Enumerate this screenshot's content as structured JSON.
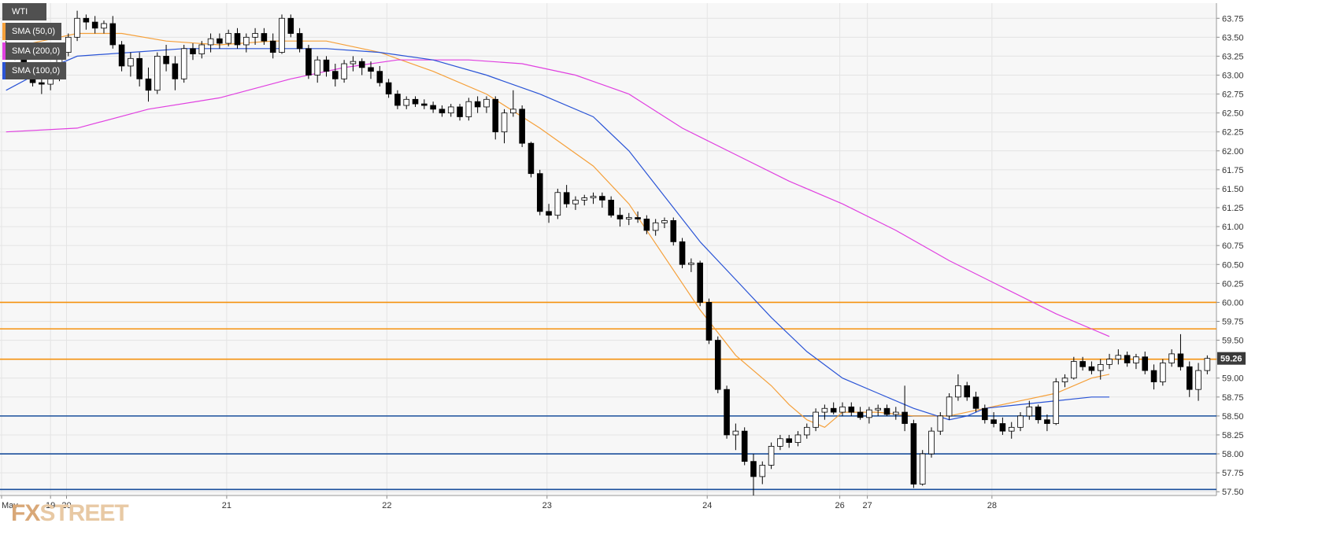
{
  "chart_data": {
    "type": "candlestick",
    "title": "WTI",
    "symbol": "WTI",
    "ylim": [
      57.45,
      63.95
    ],
    "yticks": [
      "63.75",
      "63.50",
      "63.25",
      "63.00",
      "62.75",
      "62.50",
      "62.25",
      "62.00",
      "61.75",
      "61.50",
      "61.25",
      "61.00",
      "60.75",
      "60.50",
      "60.25",
      "60.00",
      "59.75",
      "59.50",
      "59.25",
      "59.00",
      "58.75",
      "58.50",
      "58.25",
      "58.00",
      "57.75",
      "57.50"
    ],
    "xtick_labels": [
      {
        "label": "May",
        "at": 0
      },
      {
        "label": "19",
        "at": 5.5
      },
      {
        "label": "20",
        "at": 7.3
      },
      {
        "label": "21",
        "at": 25.3
      },
      {
        "label": "22",
        "at": 43.3
      },
      {
        "label": "23",
        "at": 61.3
      },
      {
        "label": "24",
        "at": 79.3
      },
      {
        "label": "26",
        "at": 94.2
      },
      {
        "label": "27",
        "at": 97.3
      },
      {
        "label": "28",
        "at": 111.3
      }
    ],
    "current_price": "59.26",
    "hlines": [
      {
        "value": 60.0,
        "color": "#f5920f"
      },
      {
        "value": 59.65,
        "color": "#f5920f"
      },
      {
        "value": 59.25,
        "color": "#f5920f"
      },
      {
        "value": 58.5,
        "color": "#1a4f9c"
      },
      {
        "value": 58.0,
        "color": "#1a4f9c"
      },
      {
        "value": 57.53,
        "color": "#1a4f9c"
      }
    ],
    "series": [
      {
        "name": "SMA (50,0)",
        "color": "#f5a03a",
        "points": [
          [
            0,
            63.35
          ],
          [
            4,
            63.45
          ],
          [
            8,
            63.55
          ],
          [
            13,
            63.55
          ],
          [
            18,
            63.45
          ],
          [
            24,
            63.4
          ],
          [
            30,
            63.45
          ],
          [
            36,
            63.45
          ],
          [
            42,
            63.3
          ],
          [
            48,
            63.05
          ],
          [
            54,
            62.75
          ],
          [
            60,
            62.3
          ],
          [
            66,
            61.8
          ],
          [
            70,
            61.3
          ],
          [
            74,
            60.6
          ],
          [
            78,
            59.9
          ],
          [
            82,
            59.3
          ],
          [
            86,
            58.9
          ],
          [
            88,
            58.65
          ],
          [
            90,
            58.45
          ],
          [
            92,
            58.35
          ],
          [
            94,
            58.55
          ],
          [
            98,
            58.55
          ],
          [
            102,
            58.5
          ],
          [
            106,
            58.5
          ],
          [
            110,
            58.6
          ],
          [
            114,
            58.7
          ],
          [
            118,
            58.8
          ],
          [
            122,
            59.0
          ],
          [
            124,
            59.05
          ]
        ]
      },
      {
        "name": "SMA (200,0)",
        "color": "#e040e0",
        "points": [
          [
            0,
            62.25
          ],
          [
            8,
            62.3
          ],
          [
            16,
            62.55
          ],
          [
            24,
            62.7
          ],
          [
            32,
            62.95
          ],
          [
            38,
            63.1
          ],
          [
            44,
            63.2
          ],
          [
            52,
            63.2
          ],
          [
            58,
            63.15
          ],
          [
            64,
            63.0
          ],
          [
            70,
            62.75
          ],
          [
            76,
            62.3
          ],
          [
            82,
            61.95
          ],
          [
            88,
            61.6
          ],
          [
            94,
            61.3
          ],
          [
            100,
            60.95
          ],
          [
            106,
            60.55
          ],
          [
            112,
            60.2
          ],
          [
            118,
            59.85
          ],
          [
            124,
            59.55
          ]
        ]
      },
      {
        "name": "SMA (100,0)",
        "color": "#2a54d6",
        "points": [
          [
            0,
            62.8
          ],
          [
            4,
            63.05
          ],
          [
            8,
            63.25
          ],
          [
            14,
            63.3
          ],
          [
            20,
            63.35
          ],
          [
            28,
            63.35
          ],
          [
            36,
            63.35
          ],
          [
            42,
            63.3
          ],
          [
            48,
            63.2
          ],
          [
            54,
            63.0
          ],
          [
            60,
            62.75
          ],
          [
            66,
            62.45
          ],
          [
            70,
            62.0
          ],
          [
            74,
            61.4
          ],
          [
            78,
            60.8
          ],
          [
            82,
            60.3
          ],
          [
            86,
            59.8
          ],
          [
            90,
            59.35
          ],
          [
            94,
            59.0
          ],
          [
            98,
            58.8
          ],
          [
            102,
            58.6
          ],
          [
            106,
            58.45
          ],
          [
            108,
            58.5
          ],
          [
            110,
            58.6
          ],
          [
            114,
            58.65
          ],
          [
            118,
            58.7
          ],
          [
            122,
            58.75
          ],
          [
            124,
            58.75
          ]
        ]
      }
    ],
    "candles": [
      [
        63.38,
        63.45,
        63.3,
        63.32
      ],
      [
        63.32,
        63.42,
        63.2,
        63.25
      ],
      [
        63.25,
        63.3,
        63.02,
        63.05
      ],
      [
        63.05,
        63.1,
        62.85,
        62.9
      ],
      [
        62.9,
        62.95,
        62.75,
        62.88
      ],
      [
        62.88,
        63.0,
        62.8,
        62.95
      ],
      [
        62.95,
        63.35,
        62.92,
        63.3
      ],
      [
        63.3,
        63.55,
        63.25,
        63.5
      ],
      [
        63.5,
        63.85,
        63.45,
        63.75
      ],
      [
        63.75,
        63.8,
        63.6,
        63.7
      ],
      [
        63.7,
        63.78,
        63.55,
        63.62
      ],
      [
        63.62,
        63.72,
        63.55,
        63.68
      ],
      [
        63.68,
        63.78,
        63.35,
        63.4
      ],
      [
        63.4,
        63.45,
        63.05,
        63.12
      ],
      [
        63.12,
        63.3,
        62.98,
        63.22
      ],
      [
        63.22,
        63.3,
        62.85,
        62.95
      ],
      [
        62.95,
        63.1,
        62.65,
        62.8
      ],
      [
        62.8,
        63.3,
        62.75,
        63.25
      ],
      [
        63.25,
        63.4,
        63.05,
        63.15
      ],
      [
        63.15,
        63.25,
        62.8,
        62.95
      ],
      [
        62.95,
        63.4,
        62.9,
        63.35
      ],
      [
        63.35,
        63.42,
        63.2,
        63.28
      ],
      [
        63.28,
        63.45,
        63.22,
        63.4
      ],
      [
        63.4,
        63.55,
        63.3,
        63.48
      ],
      [
        63.48,
        63.55,
        63.35,
        63.42
      ],
      [
        63.42,
        63.6,
        63.38,
        63.55
      ],
      [
        63.55,
        63.62,
        63.35,
        63.4
      ],
      [
        63.4,
        63.55,
        63.3,
        63.5
      ],
      [
        63.5,
        63.62,
        63.4,
        63.55
      ],
      [
        63.55,
        63.62,
        63.4,
        63.45
      ],
      [
        63.45,
        63.55,
        63.22,
        63.3
      ],
      [
        63.3,
        63.8,
        63.28,
        63.75
      ],
      [
        63.75,
        63.8,
        63.5,
        63.55
      ],
      [
        63.55,
        63.62,
        63.3,
        63.35
      ],
      [
        63.35,
        63.4,
        62.95,
        63.0
      ],
      [
        63.0,
        63.25,
        62.9,
        63.2
      ],
      [
        63.2,
        63.25,
        62.98,
        63.05
      ],
      [
        63.05,
        63.15,
        62.85,
        62.95
      ],
      [
        62.95,
        63.2,
        62.9,
        63.15
      ],
      [
        63.15,
        63.25,
        63.05,
        63.18
      ],
      [
        63.18,
        63.22,
        63.0,
        63.1
      ],
      [
        63.1,
        63.18,
        62.95,
        63.05
      ],
      [
        63.05,
        63.12,
        62.85,
        62.9
      ],
      [
        62.9,
        62.95,
        62.7,
        62.75
      ],
      [
        62.75,
        62.8,
        62.55,
        62.6
      ],
      [
        62.6,
        62.72,
        62.55,
        62.68
      ],
      [
        62.68,
        62.72,
        62.58,
        62.62
      ],
      [
        62.62,
        62.68,
        62.55,
        62.6
      ],
      [
        62.6,
        62.65,
        62.5,
        62.55
      ],
      [
        62.55,
        62.6,
        62.45,
        62.5
      ],
      [
        62.5,
        62.62,
        62.45,
        62.58
      ],
      [
        62.58,
        62.62,
        62.4,
        62.45
      ],
      [
        62.45,
        62.7,
        62.4,
        62.65
      ],
      [
        62.65,
        62.72,
        62.5,
        62.58
      ],
      [
        62.58,
        62.72,
        62.5,
        62.68
      ],
      [
        62.68,
        62.72,
        62.15,
        62.25
      ],
      [
        62.25,
        62.55,
        62.1,
        62.5
      ],
      [
        62.5,
        62.8,
        62.45,
        62.55
      ],
      [
        62.55,
        62.6,
        62.05,
        62.1
      ],
      [
        62.1,
        62.12,
        61.65,
        61.7
      ],
      [
        61.7,
        61.75,
        61.15,
        61.2
      ],
      [
        61.2,
        61.3,
        61.05,
        61.15
      ],
      [
        61.15,
        61.5,
        61.1,
        61.45
      ],
      [
        61.45,
        61.55,
        61.25,
        61.3
      ],
      [
        61.3,
        61.4,
        61.22,
        61.35
      ],
      [
        61.35,
        61.42,
        61.28,
        61.38
      ],
      [
        61.38,
        61.45,
        61.3,
        61.4
      ],
      [
        61.4,
        61.45,
        61.25,
        61.35
      ],
      [
        61.35,
        61.4,
        61.12,
        61.15
      ],
      [
        61.15,
        61.25,
        61.0,
        61.1
      ],
      [
        61.1,
        61.18,
        61.02,
        61.12
      ],
      [
        61.12,
        61.2,
        61.05,
        61.1
      ],
      [
        61.1,
        61.15,
        60.9,
        60.95
      ],
      [
        60.95,
        61.1,
        60.88,
        61.05
      ],
      [
        61.05,
        61.12,
        60.98,
        61.08
      ],
      [
        61.08,
        61.12,
        60.75,
        60.8
      ],
      [
        60.8,
        60.85,
        60.45,
        60.5
      ],
      [
        60.5,
        60.58,
        60.4,
        60.52
      ],
      [
        60.52,
        60.55,
        59.95,
        60.0
      ],
      [
        60.0,
        60.05,
        59.45,
        59.5
      ],
      [
        59.5,
        59.55,
        58.8,
        58.85
      ],
      [
        58.85,
        58.9,
        58.2,
        58.25
      ],
      [
        58.25,
        58.4,
        58.05,
        58.3
      ],
      [
        58.3,
        58.35,
        57.85,
        57.9
      ],
      [
        57.9,
        58.0,
        57.45,
        57.7
      ],
      [
        57.7,
        57.9,
        57.6,
        57.85
      ],
      [
        57.85,
        58.15,
        57.8,
        58.1
      ],
      [
        58.1,
        58.25,
        58.05,
        58.2
      ],
      [
        58.2,
        58.25,
        58.08,
        58.15
      ],
      [
        58.15,
        58.3,
        58.1,
        58.25
      ],
      [
        58.25,
        58.4,
        58.2,
        58.35
      ],
      [
        58.35,
        58.6,
        58.3,
        58.55
      ],
      [
        58.55,
        58.65,
        58.45,
        58.6
      ],
      [
        58.6,
        58.68,
        58.52,
        58.55
      ],
      [
        58.55,
        58.68,
        58.5,
        58.62
      ],
      [
        58.62,
        58.68,
        58.5,
        58.55
      ],
      [
        58.55,
        58.62,
        58.45,
        58.48
      ],
      [
        58.48,
        58.62,
        58.4,
        58.58
      ],
      [
        58.58,
        58.65,
        58.5,
        58.6
      ],
      [
        58.6,
        58.65,
        58.5,
        58.52
      ],
      [
        58.52,
        58.62,
        58.45,
        58.55
      ],
      [
        58.55,
        58.9,
        58.3,
        58.4
      ],
      [
        58.4,
        58.45,
        57.55,
        57.6
      ],
      [
        57.6,
        58.05,
        57.58,
        58.0
      ],
      [
        58.0,
        58.35,
        57.95,
        58.3
      ],
      [
        58.3,
        58.55,
        58.25,
        58.5
      ],
      [
        58.5,
        58.8,
        58.45,
        58.75
      ],
      [
        58.75,
        59.05,
        58.7,
        58.9
      ],
      [
        58.9,
        58.95,
        58.7,
        58.75
      ],
      [
        58.75,
        58.82,
        58.55,
        58.6
      ],
      [
        58.6,
        58.65,
        58.4,
        58.45
      ],
      [
        58.45,
        58.55,
        58.35,
        58.4
      ],
      [
        58.4,
        58.48,
        58.25,
        58.3
      ],
      [
        58.3,
        58.42,
        58.2,
        58.35
      ],
      [
        58.35,
        58.55,
        58.3,
        58.5
      ],
      [
        58.5,
        58.7,
        58.45,
        58.62
      ],
      [
        58.62,
        58.65,
        58.4,
        58.45
      ],
      [
        58.45,
        58.52,
        58.3,
        58.4
      ],
      [
        58.4,
        59.0,
        58.38,
        58.95
      ],
      [
        58.95,
        59.05,
        58.88,
        59.0
      ],
      [
        59.0,
        59.28,
        58.98,
        59.22
      ],
      [
        59.22,
        59.28,
        59.1,
        59.15
      ],
      [
        59.15,
        59.22,
        59.05,
        59.1
      ],
      [
        59.1,
        59.25,
        58.98,
        59.18
      ],
      [
        59.18,
        59.32,
        59.12,
        59.25
      ],
      [
        59.25,
        59.38,
        59.18,
        59.3
      ],
      [
        59.3,
        59.35,
        59.15,
        59.2
      ],
      [
        59.2,
        59.32,
        59.12,
        59.28
      ],
      [
        59.28,
        59.35,
        59.05,
        59.1
      ],
      [
        59.1,
        59.18,
        58.85,
        58.95
      ],
      [
        58.95,
        59.25,
        58.9,
        59.2
      ],
      [
        59.2,
        59.38,
        59.15,
        59.32
      ],
      [
        59.32,
        59.58,
        59.1,
        59.15
      ],
      [
        59.15,
        59.22,
        58.75,
        58.85
      ],
      [
        58.85,
        59.2,
        58.7,
        59.1
      ],
      [
        59.1,
        59.3,
        59.05,
        59.26
      ]
    ]
  },
  "legend": [
    {
      "label": "WTI",
      "color": "#505050"
    },
    {
      "label": "SMA (50,0)",
      "color": "#f5a03a"
    },
    {
      "label": "SMA (200,0)",
      "color": "#e040e0"
    },
    {
      "label": "SMA (100,0)",
      "color": "#2a54d6"
    }
  ],
  "watermark": {
    "fx": "FX",
    "street": "STREET"
  }
}
